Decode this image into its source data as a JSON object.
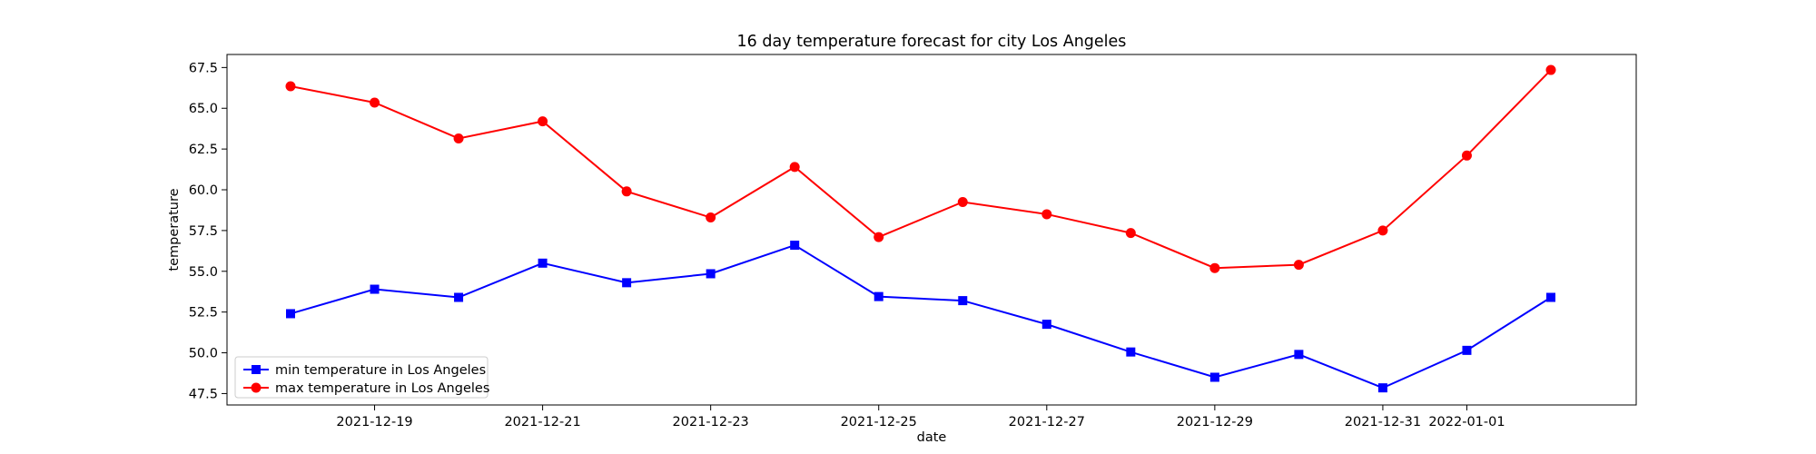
{
  "chart_data": {
    "type": "line",
    "title": "16 day temperature forecast for city Los Angeles",
    "xlabel": "date",
    "ylabel": "temperature",
    "x": [
      "2021-12-18",
      "2021-12-19",
      "2021-12-20",
      "2021-12-21",
      "2021-12-22",
      "2021-12-23",
      "2021-12-24",
      "2021-12-25",
      "2021-12-26",
      "2021-12-27",
      "2021-12-28",
      "2021-12-29",
      "2021-12-30",
      "2021-12-31",
      "2022-01-01",
      "2022-01-02"
    ],
    "xticks": [
      "2021-12-19",
      "2021-12-21",
      "2021-12-23",
      "2021-12-25",
      "2021-12-27",
      "2021-12-29",
      "2021-12-31",
      "2022-01-01"
    ],
    "yticks": [
      "47.5",
      "50.0",
      "52.5",
      "55.0",
      "57.5",
      "60.0",
      "62.5",
      "65.0",
      "67.5"
    ],
    "ylim": [
      46.8,
      68.3
    ],
    "grid": false,
    "legend_position": "lower-left",
    "series": [
      {
        "name": "min temperature in Los Angeles",
        "color": "#0000ff",
        "marker": "square",
        "values": [
          52.4,
          53.9,
          53.4,
          55.5,
          54.3,
          54.85,
          56.6,
          53.45,
          53.2,
          51.75,
          50.05,
          48.5,
          49.9,
          47.85,
          50.15,
          53.4
        ]
      },
      {
        "name": "max temperature in Los Angeles",
        "color": "#ff0000",
        "marker": "circle",
        "values": [
          66.35,
          65.35,
          63.15,
          64.2,
          59.9,
          58.3,
          61.4,
          57.1,
          59.25,
          58.5,
          57.35,
          55.2,
          55.4,
          57.5,
          62.1,
          67.35
        ]
      }
    ]
  }
}
